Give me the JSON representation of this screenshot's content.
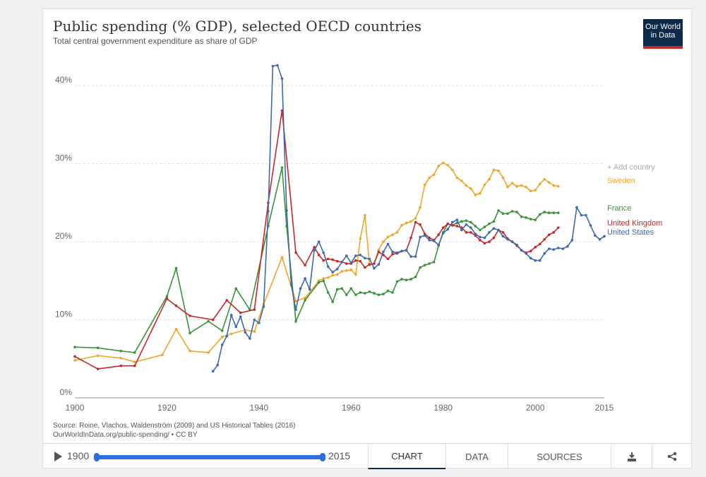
{
  "header": {
    "title": "Public spending (% GDP), selected OECD countries",
    "subtitle": "Total central government expenditure as share of GDP",
    "logo": "Our World in Data"
  },
  "footer": {
    "source": "Source: Roine, Vlachos, Waldenström (2009) and US Historical Tables (2016)",
    "license": "OurWorldInData.org/public-spending/ • CC BY"
  },
  "controls": {
    "start_year": "1900",
    "end_year": "2015",
    "tabs": [
      "CHART",
      "DATA",
      "SOURCES"
    ],
    "active_tab": "CHART",
    "download_icon": "download-icon",
    "share_icon": "share-icon"
  },
  "colors": {
    "Sweden": "#f2a427",
    "France": "#3a923a",
    "United Kingdom": "#c82727",
    "United States": "#3f68ad",
    "add_country": "#aaaaaa"
  },
  "chart_data": {
    "type": "line",
    "title": "Public spending (% GDP), selected OECD countries",
    "subtitle": "Total central government expenditure as share of GDP",
    "xlim": [
      1900,
      2015
    ],
    "ylim": [
      0,
      43
    ],
    "x_ticks": [
      1900,
      1920,
      1940,
      1960,
      1980,
      2000,
      2015
    ],
    "y_ticks": [
      0,
      10,
      20,
      30,
      40
    ],
    "y_tick_labels": [
      "0%",
      "10%",
      "20%",
      "30%",
      "40%"
    ],
    "grid": "horizontal dashed",
    "legend": "right, labels at line ends",
    "add_country_label": "+ Add country",
    "series": [
      {
        "name": "Sweden",
        "x": [
          1900,
          1905,
          1910,
          1913,
          1919,
          1922,
          1925,
          1929,
          1932,
          1934,
          1937,
          1939,
          1941,
          1945,
          1948,
          1950,
          1953,
          1954,
          1955,
          1956,
          1957,
          1958,
          1959,
          1960,
          1961,
          1962,
          1963,
          1964,
          1965,
          1966,
          1967,
          1968,
          1969,
          1970,
          1971,
          1972,
          1973,
          1974,
          1975,
          1976,
          1977,
          1978,
          1979,
          1980,
          1981,
          1982,
          1983,
          1984,
          1985,
          1986,
          1987,
          1988,
          1989,
          1990,
          1991,
          1992,
          1993,
          1994,
          1995,
          1996,
          1997,
          1998,
          1999,
          2000,
          2001,
          2002,
          2003,
          2004,
          2005
        ],
        "y": [
          4.8,
          5.4,
          5.1,
          4.6,
          5.5,
          8.8,
          6.0,
          5.8,
          7.8,
          8.2,
          8.7,
          8.5,
          12.0,
          18.0,
          12.4,
          12.8,
          15.0,
          15.3,
          15.4,
          15.7,
          15.8,
          16.2,
          16.3,
          16.4,
          15.8,
          20.4,
          23.4,
          17.0,
          17.2,
          19.0,
          20.0,
          20.6,
          20.9,
          21.2,
          22.1,
          22.4,
          22.6,
          23.0,
          24.4,
          27.3,
          28.2,
          28.6,
          29.7,
          30.1,
          29.8,
          29.2,
          28.2,
          27.8,
          27.2,
          26.8,
          26.0,
          26.2,
          27.3,
          28.0,
          29.2,
          29.1,
          28.2,
          27.0,
          27.5,
          27.1,
          27.2,
          27.0,
          26.5,
          26.6,
          27.4,
          28.0,
          27.6,
          27.2,
          27.1
        ]
      },
      {
        "name": "France",
        "x": [
          1900,
          1905,
          1910,
          1913,
          1920,
          1922,
          1925,
          1929,
          1932,
          1935,
          1938,
          1942,
          1945,
          1946,
          1948,
          1950,
          1953,
          1954,
          1955,
          1956,
          1957,
          1958,
          1959,
          1960,
          1961,
          1962,
          1963,
          1964,
          1965,
          1966,
          1967,
          1968,
          1969,
          1970,
          1971,
          1972,
          1973,
          1974,
          1975,
          1976,
          1977,
          1978,
          1979,
          1980,
          1981,
          1982,
          1983,
          1984,
          1985,
          1986,
          1987,
          1988,
          1989,
          1990,
          1991,
          1992,
          1993,
          1994,
          1995,
          1996,
          1997,
          1998,
          1999,
          2000,
          2001,
          2002,
          2003,
          2004,
          2005
        ],
        "y": [
          6.5,
          6.4,
          6.0,
          5.8,
          13.0,
          16.6,
          8.3,
          9.8,
          8.6,
          14.0,
          11.3,
          22.0,
          29.5,
          22.0,
          9.8,
          12.5,
          14.8,
          15.0,
          13.5,
          12.3,
          13.9,
          14.0,
          13.2,
          14.0,
          13.2,
          13.5,
          13.4,
          13.6,
          13.4,
          13.2,
          13.3,
          13.7,
          13.5,
          14.9,
          15.2,
          15.1,
          15.2,
          15.5,
          16.7,
          17.0,
          17.2,
          17.4,
          19.5,
          21.2,
          22.3,
          22.1,
          22.4,
          22.6,
          22.7,
          22.5,
          22.0,
          21.5,
          21.9,
          22.3,
          22.6,
          24.0,
          23.6,
          23.6,
          23.9,
          23.8,
          23.2,
          23.1,
          22.9,
          22.8,
          23.5,
          23.8,
          23.7,
          23.7,
          23.7
        ]
      },
      {
        "name": "United Kingdom",
        "x": [
          1900,
          1905,
          1910,
          1913,
          1920,
          1922,
          1925,
          1930,
          1933,
          1936,
          1939,
          1942,
          1945,
          1948,
          1950,
          1952,
          1953,
          1954,
          1955,
          1956,
          1957,
          1958,
          1959,
          1960,
          1961,
          1962,
          1963,
          1964,
          1965,
          1966,
          1967,
          1968,
          1969,
          1970,
          1971,
          1972,
          1973,
          1974,
          1975,
          1976,
          1977,
          1978,
          1979,
          1980,
          1981,
          1982,
          1983,
          1984,
          1985,
          1986,
          1987,
          1988,
          1989,
          1990,
          1991,
          1992,
          1993,
          1994,
          1995,
          1996,
          1997,
          1998,
          1999,
          2000,
          2001,
          2002,
          2003,
          2004,
          2005
        ],
        "y": [
          5.3,
          3.7,
          4.1,
          4.1,
          12.7,
          11.8,
          10.5,
          10.0,
          12.5,
          10.9,
          11.3,
          25.0,
          36.8,
          18.6,
          17.0,
          19.3,
          18.3,
          17.6,
          17.8,
          17.7,
          17.5,
          17.4,
          17.2,
          17.2,
          17.6,
          17.5,
          16.7,
          17.1,
          17.2,
          18.7,
          18.3,
          17.8,
          18.4,
          18.5,
          18.8,
          18.9,
          20.5,
          22.5,
          22.2,
          21.0,
          20.5,
          20.2,
          20.9,
          21.8,
          22.3,
          22.1,
          22.0,
          21.8,
          21.2,
          21.2,
          20.8,
          20.2,
          19.8,
          20.0,
          20.5,
          21.5,
          21.2,
          20.4,
          20.0,
          19.5,
          18.9,
          18.6,
          18.8,
          19.3,
          19.7,
          20.3,
          20.9,
          21.2,
          21.8
        ]
      },
      {
        "name": "United States",
        "x": [
          1930,
          1931,
          1932,
          1933,
          1934,
          1935,
          1936,
          1937,
          1938,
          1939,
          1940,
          1941,
          1942,
          1943,
          1944,
          1945,
          1946,
          1947,
          1948,
          1949,
          1950,
          1951,
          1952,
          1953,
          1954,
          1955,
          1956,
          1957,
          1958,
          1959,
          1960,
          1961,
          1962,
          1963,
          1964,
          1965,
          1966,
          1967,
          1968,
          1969,
          1970,
          1971,
          1972,
          1973,
          1974,
          1975,
          1976,
          1977,
          1978,
          1979,
          1980,
          1981,
          1982,
          1983,
          1984,
          1985,
          1986,
          1987,
          1988,
          1989,
          1990,
          1991,
          1992,
          1993,
          1994,
          1995,
          1996,
          1997,
          1998,
          1999,
          2000,
          2001,
          2002,
          2003,
          2004,
          2005,
          2006,
          2007,
          2008,
          2009,
          2010,
          2011,
          2012,
          2013,
          2014,
          2015
        ],
        "y": [
          3.4,
          4.2,
          6.8,
          7.9,
          10.6,
          9.1,
          10.4,
          8.4,
          7.6,
          10.0,
          9.6,
          11.7,
          23.9,
          42.5,
          42.6,
          40.9,
          24.0,
          14.5,
          11.3,
          14.0,
          15.3,
          13.9,
          18.9,
          20.0,
          18.6,
          16.8,
          16.1,
          16.5,
          17.4,
          18.2,
          17.3,
          18.2,
          18.3,
          17.9,
          17.8,
          16.6,
          17.1,
          18.7,
          19.7,
          18.7,
          18.6,
          18.8,
          18.9,
          18.1,
          18.1,
          20.6,
          20.8,
          20.2,
          20.1,
          19.6,
          21.1,
          21.6,
          22.5,
          22.8,
          21.5,
          22.2,
          21.8,
          21.0,
          20.6,
          20.5,
          21.2,
          21.7,
          21.5,
          20.7,
          20.3,
          20.0,
          19.6,
          18.9,
          18.5,
          17.9,
          17.6,
          17.6,
          18.5,
          19.1,
          19.0,
          19.2,
          19.1,
          19.4,
          20.2,
          24.4,
          23.4,
          23.4,
          22.1,
          20.8,
          20.3,
          20.7
        ]
      }
    ]
  }
}
